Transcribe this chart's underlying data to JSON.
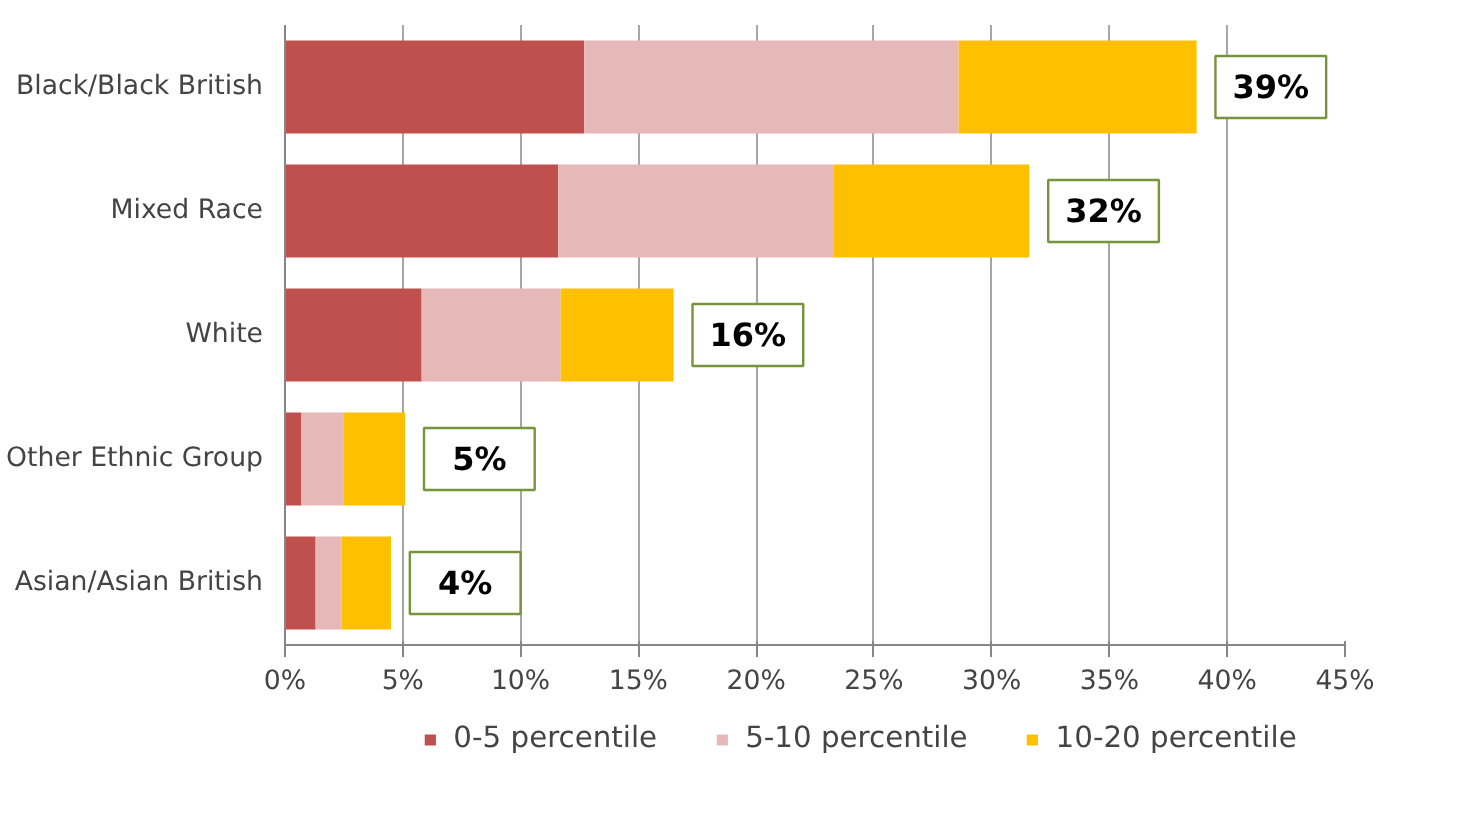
{
  "chart_data": {
    "type": "bar",
    "orientation": "horizontal",
    "stacked": true,
    "categories": [
      "Black/Black British",
      "Mixed Race",
      "White",
      "Other Ethnic Group",
      "Asian/Asian British"
    ],
    "series": [
      {
        "name": "0-5 percentile",
        "color": "#c0504d",
        "values": [
          12.7,
          11.6,
          5.8,
          0.7,
          1.3
        ]
      },
      {
        "name": "5-10 percentile",
        "color": "#e6b9b8",
        "values": [
          15.9,
          11.7,
          5.9,
          1.8,
          1.1
        ]
      },
      {
        "name": "10-20 percentile",
        "color": "#ffc000",
        "values": [
          10.1,
          8.3,
          4.8,
          2.6,
          2.1
        ]
      }
    ],
    "totals": [
      "39%",
      "32%",
      "16%",
      "5%",
      "4%"
    ],
    "xlim": [
      0,
      45
    ],
    "xticks": [
      {
        "value": 0,
        "label": "0%"
      },
      {
        "value": 5,
        "label": "5%"
      },
      {
        "value": 10,
        "label": "10%"
      },
      {
        "value": 15,
        "label": "15%"
      },
      {
        "value": 20,
        "label": "20%"
      },
      {
        "value": 25,
        "label": "25%"
      },
      {
        "value": 30,
        "label": "30%"
      },
      {
        "value": 35,
        "label": "35%"
      },
      {
        "value": 40,
        "label": "40%"
      },
      {
        "value": 45,
        "label": "45%"
      }
    ],
    "grid": "x",
    "legend": "bottom"
  }
}
